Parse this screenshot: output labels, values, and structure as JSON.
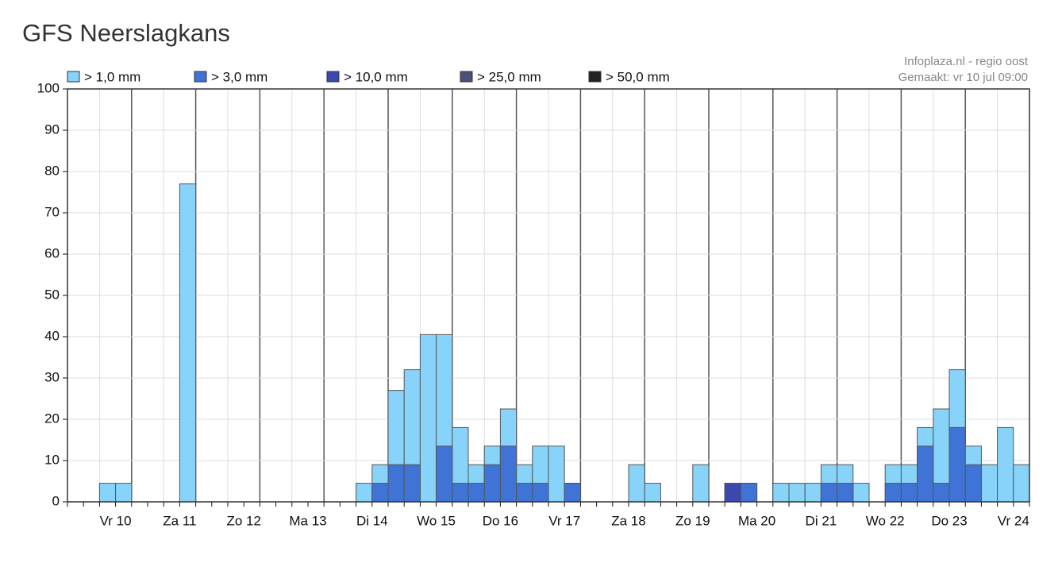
{
  "chart_data": {
    "type": "bar",
    "title": "GFS Neerslagkans",
    "source": "Infoplaza.nl - regio oost",
    "made": "Gemaakt: vr 10 jul 09:00",
    "categories": [
      null,
      null,
      null,
      "Vr 10",
      null,
      null,
      null,
      "Za 11",
      null,
      null,
      null,
      "Zo 12",
      null,
      null,
      null,
      "Ma 13",
      null,
      null,
      null,
      "Di 14",
      null,
      null,
      null,
      "Wo 15",
      null,
      null,
      null,
      "Do 16",
      null,
      null,
      null,
      "Vr 17",
      null,
      null,
      null,
      "Za 18",
      null,
      null,
      null,
      "Zo 19",
      null,
      null,
      null,
      "Ma 20",
      null,
      null,
      null,
      "Di 21",
      null,
      null,
      null,
      "Wo 22",
      null,
      null,
      null,
      "Do 23",
      null,
      null,
      null,
      "Vr 24"
    ],
    "series": [
      {
        "name": "> 1,0 mm",
        "color": "#87d3fa",
        "values": [
          0,
          0,
          4.5,
          4.5,
          0,
          0,
          0,
          77,
          0,
          0,
          0,
          0,
          0,
          0,
          0,
          0,
          0,
          0,
          4.5,
          9,
          27,
          32,
          40.5,
          40.5,
          18,
          9,
          13.5,
          22.5,
          9,
          13.5,
          13.5,
          4.5,
          0,
          0,
          0,
          9,
          4.5,
          0,
          0,
          9,
          0,
          4.5,
          4.5,
          0,
          4.5,
          4.5,
          4.5,
          9,
          9,
          4.5,
          0,
          9,
          9,
          18,
          22.5,
          32,
          13.5,
          9,
          18,
          9
        ]
      },
      {
        "name": "> 3,0 mm",
        "color": "#3f74d6",
        "values": [
          0,
          0,
          0,
          0,
          0,
          0,
          0,
          0,
          0,
          0,
          0,
          0,
          0,
          0,
          0,
          0,
          0,
          0,
          0,
          4.5,
          9,
          9,
          0,
          13.5,
          4.5,
          4.5,
          9,
          13.5,
          4.5,
          4.5,
          0,
          4.5,
          0,
          0,
          0,
          0,
          0,
          0,
          0,
          0,
          0,
          4.5,
          4.5,
          0,
          0,
          0,
          0,
          4.5,
          4.5,
          0,
          0,
          4.5,
          4.5,
          13.5,
          4.5,
          18,
          9,
          0,
          0,
          0
        ]
      },
      {
        "name": "> 10,0 mm",
        "color": "#3a48b0",
        "values": [
          0,
          0,
          0,
          0,
          0,
          0,
          0,
          0,
          0,
          0,
          0,
          0,
          0,
          0,
          0,
          0,
          0,
          0,
          0,
          0,
          0,
          0,
          0,
          0,
          0,
          0,
          0,
          0,
          0,
          0,
          0,
          0,
          0,
          0,
          0,
          0,
          0,
          0,
          0,
          0,
          0,
          4.5,
          0,
          0,
          0,
          0,
          0,
          0,
          0,
          0,
          0,
          0,
          0,
          0,
          0,
          0,
          0,
          0,
          0,
          0
        ]
      },
      {
        "name": "> 25,0 mm",
        "color": "#4a4f7c",
        "values": [
          0,
          0,
          0,
          0,
          0,
          0,
          0,
          0,
          0,
          0,
          0,
          0,
          0,
          0,
          0,
          0,
          0,
          0,
          0,
          0,
          0,
          0,
          0,
          0,
          0,
          0,
          0,
          0,
          0,
          0,
          0,
          0,
          0,
          0,
          0,
          0,
          0,
          0,
          0,
          0,
          0,
          0,
          0,
          0,
          0,
          0,
          0,
          0,
          0,
          0,
          0,
          0,
          0,
          0,
          0,
          0,
          0,
          0,
          0,
          0
        ]
      },
      {
        "name": "> 50,0 mm",
        "color": "#222222",
        "values": [
          0,
          0,
          0,
          0,
          0,
          0,
          0,
          0,
          0,
          0,
          0,
          0,
          0,
          0,
          0,
          0,
          0,
          0,
          0,
          0,
          0,
          0,
          0,
          0,
          0,
          0,
          0,
          0,
          0,
          0,
          0,
          0,
          0,
          0,
          0,
          0,
          0,
          0,
          0,
          0,
          0,
          0,
          0,
          0,
          0,
          0,
          0,
          0,
          0,
          0,
          0,
          0,
          0,
          0,
          0,
          0,
          0,
          0,
          0,
          0
        ]
      }
    ],
    "ylim": [
      0,
      100
    ],
    "yticks": [
      0,
      10,
      20,
      30,
      40,
      50,
      60,
      70,
      80,
      90,
      100
    ],
    "grid": true
  }
}
